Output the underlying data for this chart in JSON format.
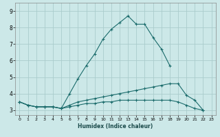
{
  "title": "",
  "xlabel": "Humidex (Indice chaleur)",
  "bg_color": "#cce8e8",
  "grid_color": "#aacccc",
  "line_color": "#1a6b6b",
  "xlim": [
    -0.5,
    23.5
  ],
  "ylim": [
    2.7,
    9.5
  ],
  "xticks": [
    0,
    1,
    2,
    3,
    4,
    5,
    6,
    7,
    8,
    9,
    10,
    11,
    12,
    13,
    14,
    15,
    16,
    17,
    18,
    19,
    20,
    21,
    22,
    23
  ],
  "yticks": [
    3,
    4,
    5,
    6,
    7,
    8,
    9
  ],
  "series": [
    {
      "x": [
        0,
        1,
        2,
        3,
        4,
        5,
        6,
        7,
        8,
        9,
        10,
        11,
        12,
        13,
        14,
        15,
        16,
        17,
        18
      ],
      "y": [
        3.5,
        3.3,
        3.2,
        3.2,
        3.2,
        3.1,
        4.0,
        4.9,
        5.7,
        6.4,
        7.3,
        7.9,
        8.3,
        8.7,
        8.2,
        8.2,
        7.4,
        6.7,
        5.7
      ]
    },
    {
      "x": [
        0,
        1,
        2,
        3,
        4,
        5,
        6,
        7,
        8,
        9,
        10,
        11,
        12,
        13,
        14,
        15,
        16,
        17,
        18,
        19,
        20,
        21,
        22
      ],
      "y": [
        3.5,
        3.3,
        3.2,
        3.2,
        3.2,
        3.1,
        3.3,
        3.5,
        3.6,
        3.7,
        3.8,
        3.9,
        4.0,
        4.1,
        4.2,
        4.3,
        4.4,
        4.5,
        4.6,
        4.6,
        3.9,
        3.6,
        3.0
      ]
    },
    {
      "x": [
        0,
        1,
        2,
        3,
        4,
        5,
        6,
        7,
        8,
        9,
        10,
        11,
        12,
        13,
        14,
        15,
        16,
        17,
        18,
        19,
        20,
        21,
        22
      ],
      "y": [
        3.5,
        3.3,
        3.2,
        3.2,
        3.2,
        3.1,
        3.2,
        3.3,
        3.4,
        3.4,
        3.5,
        3.5,
        3.6,
        3.6,
        3.6,
        3.6,
        3.6,
        3.6,
        3.6,
        3.5,
        3.3,
        3.1,
        3.0
      ]
    }
  ]
}
